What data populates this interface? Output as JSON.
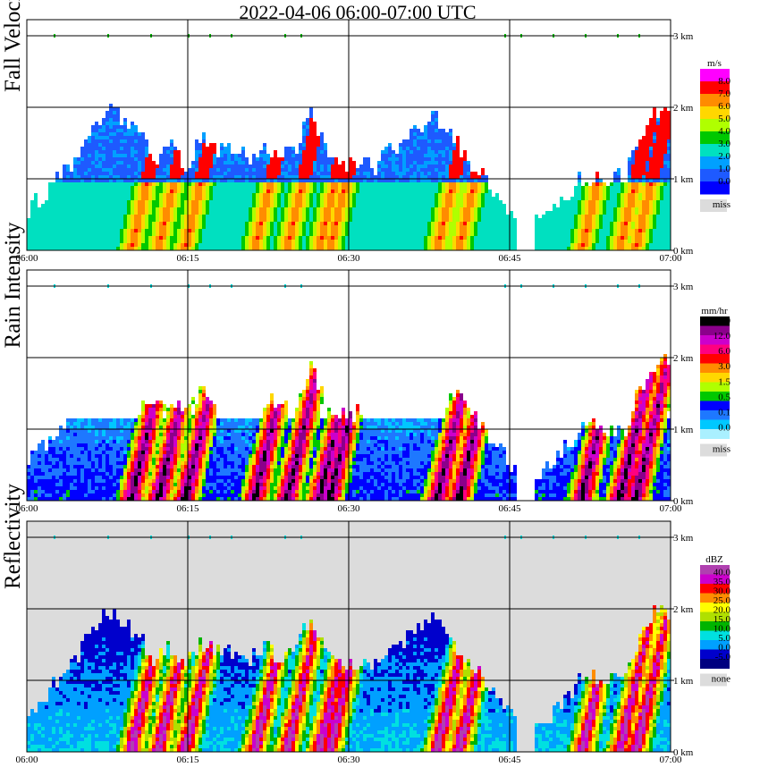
{
  "title": "2022-04-06   06:00-07:00 UTC",
  "chart_data": [
    {
      "type": "heatmap",
      "ylabel": "Fall Velocity",
      "x_ticks": [
        "06:00",
        "06:15",
        "06:30",
        "06:45",
        "07:00"
      ],
      "y_ticks": [
        "0 km",
        "1 km",
        "2 km",
        "3 km"
      ],
      "ylim": [
        0,
        3.5
      ],
      "legend": {
        "unit": "m/s",
        "labels": [
          "8.0",
          "7.0",
          "6.0",
          "5.0",
          "4.0",
          "3.0",
          "2.0",
          "1.0",
          "0.0"
        ],
        "colors": [
          "#ff00ff",
          "#ff0000",
          "#ff8c00",
          "#ffd700",
          "#b0ff00",
          "#00c800",
          "#00e0c0",
          "#00a0ff",
          "#1e5aff",
          "#0000ff"
        ],
        "miss_label": "miss",
        "miss_color": "#dcdcdc"
      },
      "echo_tops_km": [
        [
          0,
          0.6
        ],
        [
          1,
          0.8
        ],
        [
          2,
          1.05
        ],
        [
          3,
          1.25
        ],
        [
          4,
          1.75
        ],
        [
          5,
          2.0
        ],
        [
          6,
          1.85
        ],
        [
          7,
          1.7
        ],
        [
          8,
          1.25
        ],
        [
          9,
          1.5
        ],
        [
          10,
          1.2
        ],
        [
          11,
          1.6
        ],
        [
          12,
          1.4
        ],
        [
          13,
          1.45
        ],
        [
          14,
          1.3
        ],
        [
          15,
          1.5
        ],
        [
          16,
          1.35
        ],
        [
          17,
          1.4
        ],
        [
          18,
          1.95
        ],
        [
          19,
          1.4
        ],
        [
          20,
          1.2
        ],
        [
          21,
          1.3
        ],
        [
          22,
          1.2
        ],
        [
          23,
          1.4
        ],
        [
          24,
          1.55
        ],
        [
          25,
          1.8
        ],
        [
          26,
          1.9
        ],
        [
          27,
          1.6
        ],
        [
          28,
          1.3
        ],
        [
          29,
          1.05
        ],
        [
          30,
          0.7
        ],
        [
          31,
          0.5
        ],
        [
          32,
          0.4
        ],
        [
          33,
          0.5
        ],
        [
          34,
          0.7
        ],
        [
          35,
          1.0
        ],
        [
          36,
          1.05
        ],
        [
          37,
          1.05
        ],
        [
          38,
          1.05
        ],
        [
          39,
          1.6
        ],
        [
          40,
          2.0
        ],
        [
          41,
          1.9
        ]
      ],
      "gap_minutes": [
        45.5,
        47
      ],
      "shower_minutes": [
        9.5,
        12,
        14.5,
        21,
        24,
        27,
        28,
        38,
        40,
        51.5,
        55,
        56.5
      ]
    },
    {
      "type": "heatmap",
      "ylabel": "Rain Intensity",
      "x_ticks": [
        "06:00",
        "06:15",
        "06:30",
        "06:45",
        "07:00"
      ],
      "y_ticks": [
        "0 km",
        "1 km",
        "2 km",
        "3 km"
      ],
      "ylim": [
        0,
        3.5
      ],
      "legend": {
        "unit": "mm/hr",
        "labels": [
          "48.0",
          "12.0",
          "6.0",
          "3.0",
          "1.5",
          "0.5",
          "0.1",
          "0.0"
        ],
        "colors": [
          "#000000",
          "#8b008b",
          "#cc00cc",
          "#ff0080",
          "#ff0000",
          "#ff8c00",
          "#ffd700",
          "#b0ff00",
          "#00c800",
          "#0000ff",
          "#1e78ff",
          "#00c8ff",
          "#aaf0ff"
        ],
        "miss_label": "miss",
        "miss_color": "#dcdcdc"
      },
      "echo_tops_km": [
        [
          0,
          0.6
        ],
        [
          1,
          0.8
        ],
        [
          2,
          1.05
        ],
        [
          3,
          1.25
        ],
        [
          4,
          1.75
        ],
        [
          5,
          2.0
        ],
        [
          6,
          1.85
        ],
        [
          7,
          1.7
        ],
        [
          8,
          1.25
        ],
        [
          9,
          1.5
        ],
        [
          10,
          1.2
        ],
        [
          11,
          1.6
        ],
        [
          12,
          1.4
        ],
        [
          13,
          1.45
        ],
        [
          14,
          1.3
        ],
        [
          15,
          1.5
        ],
        [
          16,
          1.35
        ],
        [
          17,
          1.4
        ],
        [
          18,
          1.95
        ],
        [
          19,
          1.4
        ],
        [
          20,
          1.2
        ],
        [
          21,
          1.3
        ],
        [
          22,
          1.2
        ],
        [
          23,
          1.4
        ],
        [
          24,
          1.55
        ],
        [
          25,
          1.8
        ],
        [
          26,
          1.9
        ],
        [
          27,
          1.6
        ],
        [
          28,
          1.3
        ],
        [
          29,
          1.05
        ],
        [
          30,
          0.7
        ],
        [
          31,
          0.5
        ],
        [
          32,
          0.4
        ],
        [
          33,
          0.5
        ],
        [
          34,
          0.7
        ],
        [
          35,
          1.0
        ],
        [
          36,
          1.05
        ],
        [
          37,
          1.05
        ],
        [
          38,
          1.05
        ],
        [
          39,
          1.6
        ],
        [
          40,
          2.0
        ],
        [
          41,
          1.9
        ]
      ],
      "gap_minutes": [
        45.5,
        47
      ],
      "shower_minutes": [
        9.5,
        12,
        14.5,
        21,
        24,
        27,
        28,
        38,
        40,
        51.5,
        55,
        56.5
      ]
    },
    {
      "type": "heatmap",
      "ylabel": "Reflectivity",
      "x_ticks": [
        "06:00",
        "06:15",
        "06:30",
        "06:45",
        "07:00"
      ],
      "y_ticks": [
        "0 km",
        "1 km",
        "2 km",
        "3 km"
      ],
      "ylim": [
        0,
        3.5
      ],
      "legend": {
        "unit": "dBZ",
        "labels": [
          "40.0",
          "35.0",
          "30.0",
          "25.0",
          "20.0",
          "15.0",
          "10.0",
          "5.0",
          "0.0",
          "-5.0"
        ],
        "colors": [
          "#b040b0",
          "#cc00cc",
          "#ff0000",
          "#ff8c00",
          "#ffff00",
          "#b0e000",
          "#00b400",
          "#00e0e0",
          "#00a0ff",
          "#0000cc",
          "#000080"
        ],
        "miss_label": "none",
        "miss_color": "#dcdcdc"
      },
      "echo_tops_km": [
        [
          0,
          0.6
        ],
        [
          1,
          0.8
        ],
        [
          2,
          1.05
        ],
        [
          3,
          1.25
        ],
        [
          4,
          1.75
        ],
        [
          5,
          2.0
        ],
        [
          6,
          1.85
        ],
        [
          7,
          1.7
        ],
        [
          8,
          1.25
        ],
        [
          9,
          1.5
        ],
        [
          10,
          1.2
        ],
        [
          11,
          1.6
        ],
        [
          12,
          1.4
        ],
        [
          13,
          1.45
        ],
        [
          14,
          1.3
        ],
        [
          15,
          1.5
        ],
        [
          16,
          1.35
        ],
        [
          17,
          1.4
        ],
        [
          18,
          1.95
        ],
        [
          19,
          1.4
        ],
        [
          20,
          1.2
        ],
        [
          21,
          1.3
        ],
        [
          22,
          1.2
        ],
        [
          23,
          1.4
        ],
        [
          24,
          1.55
        ],
        [
          25,
          1.8
        ],
        [
          26,
          1.9
        ],
        [
          27,
          1.6
        ],
        [
          28,
          1.3
        ],
        [
          29,
          1.05
        ],
        [
          30,
          0.7
        ],
        [
          31,
          0.5
        ],
        [
          32,
          0.4
        ],
        [
          33,
          0.5
        ],
        [
          34,
          0.7
        ],
        [
          35,
          1.0
        ],
        [
          36,
          1.05
        ],
        [
          37,
          1.05
        ],
        [
          38,
          1.05
        ],
        [
          39,
          1.6
        ],
        [
          40,
          2.0
        ],
        [
          41,
          1.9
        ]
      ],
      "gap_minutes": [
        45.5,
        47
      ],
      "shower_minutes": [
        9.5,
        12,
        14.5,
        21,
        24,
        27,
        28,
        38,
        40,
        51.5,
        55,
        56.5
      ]
    }
  ]
}
